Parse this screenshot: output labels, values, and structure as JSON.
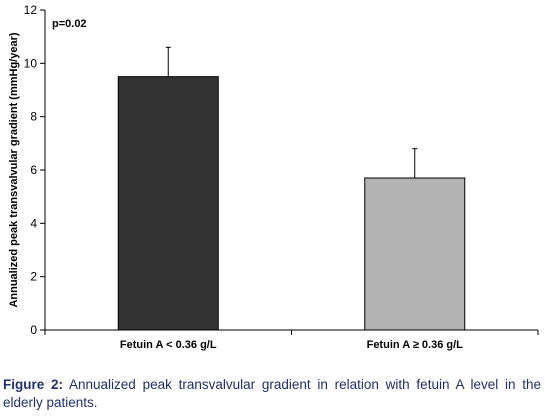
{
  "chart_data": {
    "type": "bar",
    "categories": [
      "Fetuin A < 0.36 g/L",
      "Fetuin A ≥ 0.36 g/L"
    ],
    "values": [
      9.5,
      5.7
    ],
    "errors": [
      1.1,
      1.1
    ],
    "bar_colors": [
      "#333333",
      "#b3b3b3"
    ],
    "ylabel": "Annualized peak transvalvular gradient (mmHg/year)",
    "ylim": [
      0,
      12
    ],
    "yticks": [
      0,
      2,
      4,
      6,
      8,
      10,
      12
    ],
    "grid": false,
    "annotation": "p=0.02"
  },
  "caption": {
    "lead": "Figure 2:",
    "text": " Annualized peak transvalvular gradient in relation with fetuin A level in the elderly patients."
  }
}
